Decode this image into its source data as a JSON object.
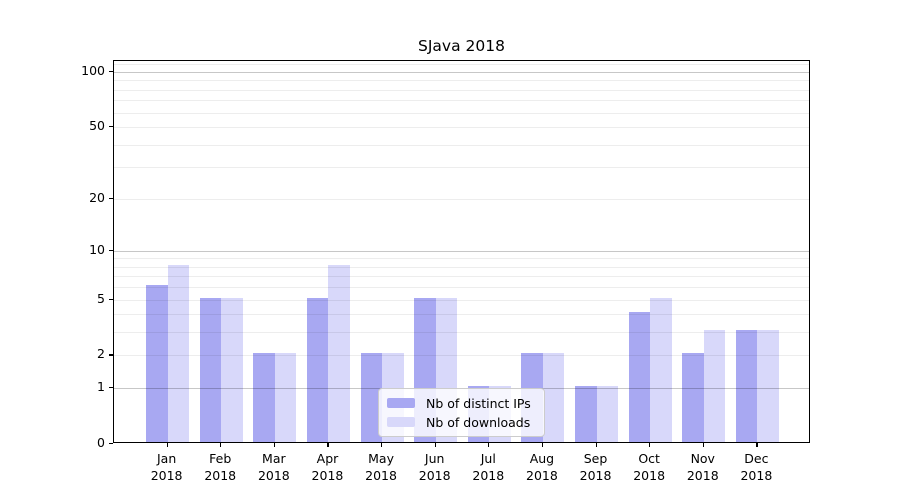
{
  "title": "SJava 2018",
  "legend": {
    "items": [
      {
        "label": "Nb of distinct IPs",
        "color": "#a8a8f2"
      },
      {
        "label": "Nb of downloads",
        "color": "#d8d8fa"
      }
    ]
  },
  "chart_data": {
    "type": "bar",
    "title": "SJava 2018",
    "categories": [
      "Jan",
      "Feb",
      "Mar",
      "Apr",
      "May",
      "Jun",
      "Jul",
      "Aug",
      "Sep",
      "Oct",
      "Nov",
      "Dec"
    ],
    "x_tick_second_line": "2018",
    "series": [
      {
        "name": "Nb of distinct IPs",
        "color": "#a8a8f2",
        "values": [
          6,
          5,
          2,
          5,
          2,
          5,
          1,
          2,
          1,
          4,
          2,
          3
        ]
      },
      {
        "name": "Nb of downloads",
        "color": "#d8d8fa",
        "values": [
          8,
          5,
          2,
          8,
          2,
          5,
          1,
          2,
          1,
          5,
          3,
          3
        ]
      }
    ],
    "xlabel": "",
    "ylabel": "",
    "y_axis": {
      "scale": "log1p",
      "tick_values": [
        0,
        1,
        2,
        5,
        10,
        20,
        50,
        100
      ],
      "tick_labels": [
        "0",
        "1",
        "2",
        "5",
        "10",
        "20",
        "50",
        "100"
      ],
      "ylim": [
        0,
        114.7
      ]
    },
    "grid": {
      "major_values": [
        1,
        10,
        100
      ],
      "minor_values": [
        2,
        3,
        4,
        5,
        6,
        7,
        8,
        9,
        20,
        30,
        40,
        50,
        60,
        70,
        80,
        90,
        110
      ]
    },
    "legend_position": "lower center"
  }
}
